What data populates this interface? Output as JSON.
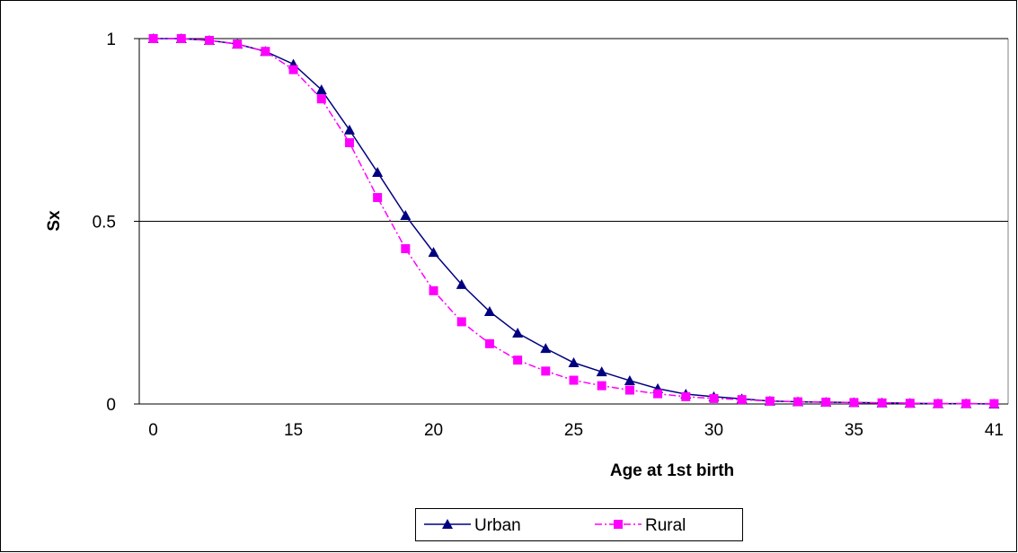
{
  "chart_data": {
    "type": "line",
    "x_label": "Age at 1st birth",
    "y_label": "Sx",
    "categories": [
      "0",
      null,
      null,
      null,
      null,
      "15",
      null,
      null,
      null,
      null,
      "20",
      null,
      null,
      null,
      null,
      "25",
      null,
      null,
      null,
      null,
      "30",
      null,
      null,
      null,
      null,
      "35",
      null,
      null,
      null,
      null,
      "41"
    ],
    "series": [
      {
        "name": "Urban",
        "color": "#000080",
        "marker": "triangle",
        "dash": "solid",
        "values": [
          1,
          1,
          0.995,
          0.985,
          0.965,
          0.93,
          0.86,
          0.75,
          0.634,
          0.516,
          0.415,
          0.327,
          0.253,
          0.194,
          0.152,
          0.113,
          0.088,
          0.064,
          0.042,
          0.027,
          0.02,
          0.014,
          0.008,
          0.006,
          0.005,
          0.004,
          0.003,
          0.002,
          0.001,
          0.001,
          0
        ]
      },
      {
        "name": "Rural",
        "color": "#ff00ff",
        "marker": "square",
        "dash": "dashdot",
        "values": [
          1,
          1,
          0.995,
          0.985,
          0.965,
          0.915,
          0.835,
          0.715,
          0.565,
          0.425,
          0.31,
          0.225,
          0.165,
          0.12,
          0.09,
          0.065,
          0.05,
          0.038,
          0.028,
          0.02,
          0.015,
          0.012,
          0.008,
          0.006,
          0.005,
          0.004,
          0.003,
          0.002,
          0.001,
          0.001,
          0.001
        ]
      }
    ],
    "ylim": [
      0,
      1
    ],
    "yticks": [
      0,
      0.5,
      1
    ],
    "grid": true,
    "legend": "bottom"
  }
}
